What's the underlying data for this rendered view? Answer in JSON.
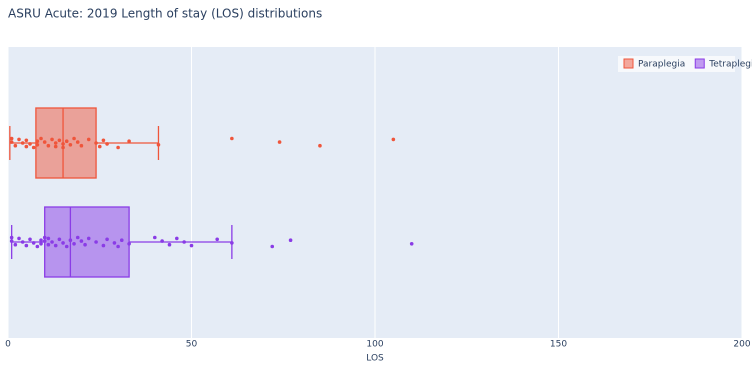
{
  "chart_data": {
    "type": "box",
    "orientation": "horizontal",
    "title": "ASRU Acute: 2019 Length of stay (LOS) distributions",
    "xlabel": "LOS",
    "xlim": [
      0,
      200
    ],
    "xticks": [
      0,
      50,
      100,
      150,
      200
    ],
    "grid": true,
    "legend": "top-right",
    "series": [
      {
        "name": "Paraplegia",
        "color": "#ef553b",
        "min": 0.5,
        "q1": 7.6,
        "median": 15,
        "q3": 24,
        "max": 41,
        "points": [
          1,
          1,
          2,
          3,
          4,
          5,
          5,
          6,
          7,
          8,
          8,
          9,
          10,
          11,
          12,
          13,
          13,
          14,
          15,
          15,
          16,
          17,
          18,
          19,
          20,
          22,
          24,
          25,
          26,
          27,
          30,
          33,
          41,
          61,
          74,
          85,
          105
        ]
      },
      {
        "name": "Tetraplegia",
        "color": "#8a3ce6",
        "min": 1,
        "q1": 10,
        "median": 17,
        "q3": 33,
        "max": 61,
        "points": [
          1,
          1,
          2,
          3,
          4,
          5,
          6,
          7,
          8,
          9,
          9,
          10,
          10,
          11,
          11,
          12,
          13,
          14,
          15,
          16,
          17,
          18,
          19,
          20,
          21,
          22,
          24,
          26,
          27,
          29,
          30,
          31,
          33,
          40,
          42,
          44,
          46,
          48,
          50,
          57,
          61,
          72,
          77,
          110
        ]
      }
    ]
  }
}
